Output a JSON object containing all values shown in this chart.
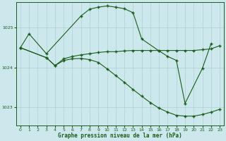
{
  "background_color": "#cce8ec",
  "line_color": "#1a5c1a",
  "grid_color": "#b0d0d4",
  "xlabel": "Graphe pression niveau de la mer (hPa)",
  "ylim": [
    1022.55,
    1025.65
  ],
  "yticks": [
    1023,
    1024,
    1025
  ],
  "xticks": [
    0,
    1,
    2,
    3,
    4,
    5,
    6,
    7,
    8,
    9,
    10,
    11,
    12,
    13,
    14,
    15,
    16,
    17,
    18,
    19,
    20,
    21,
    22,
    23
  ],
  "series_A_x": [
    0,
    1,
    3,
    7,
    8,
    9,
    10,
    11,
    12,
    13,
    14,
    16,
    17,
    18,
    19,
    21,
    22
  ],
  "series_A_y": [
    1024.5,
    1024.85,
    1024.35,
    1025.3,
    1025.47,
    1025.52,
    1025.55,
    1025.52,
    1025.48,
    1025.38,
    1024.72,
    1024.42,
    1024.28,
    1024.18,
    1023.1,
    1023.98,
    1024.6
  ],
  "series_B_x": [
    0,
    3,
    4,
    5,
    6,
    7,
    8,
    9,
    10,
    11,
    12,
    13,
    14,
    15,
    16,
    17,
    18,
    19,
    20,
    21,
    22,
    23
  ],
  "series_B_y": [
    1024.5,
    1024.25,
    1024.05,
    1024.22,
    1024.28,
    1024.32,
    1024.35,
    1024.38,
    1024.4,
    1024.4,
    1024.42,
    1024.43,
    1024.43,
    1024.43,
    1024.43,
    1024.43,
    1024.43,
    1024.43,
    1024.43,
    1024.45,
    1024.47,
    1024.55
  ],
  "series_C_x": [
    0,
    3,
    4,
    5,
    6,
    7,
    8,
    9,
    10,
    11,
    12,
    13,
    14,
    15,
    16,
    17,
    18,
    19,
    20,
    21,
    22,
    23
  ],
  "series_C_y": [
    1024.5,
    1024.25,
    1024.05,
    1024.18,
    1024.22,
    1024.23,
    1024.2,
    1024.13,
    1023.97,
    1023.8,
    1023.63,
    1023.45,
    1023.28,
    1023.12,
    1022.98,
    1022.88,
    1022.8,
    1022.78,
    1022.78,
    1022.82,
    1022.88,
    1022.95
  ]
}
